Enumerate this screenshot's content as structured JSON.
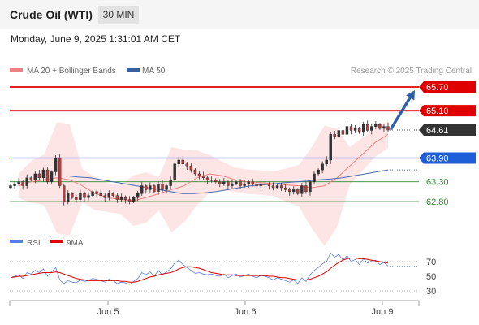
{
  "header": {
    "title": "Crude Oil (WTI)",
    "timeframe": "30 MIN",
    "datetime": "Monday, June 9, 2025 1:31:01 AM CET"
  },
  "chart_data": {
    "type": "candlestick",
    "instrument": "Crude Oil (WTI)",
    "interval": "30 MIN",
    "legend": [
      {
        "name": "MA 20 + Bollinger Bands",
        "color": "#f08080"
      },
      {
        "name": "MA 50",
        "color": "#3a5fa0"
      }
    ],
    "watermark": "Research © 2025 Trading Central",
    "x_tick_labels": [
      "Jun 5",
      "Jun 6",
      "Jun 9"
    ],
    "price_axis": {
      "range": [
        62.3,
        65.9
      ]
    },
    "levels": [
      {
        "value": 65.7,
        "label": "65.70",
        "color": "#e00000",
        "kind": "resistance"
      },
      {
        "value": 65.1,
        "label": "65.10",
        "color": "#e00000",
        "kind": "resistance"
      },
      {
        "value": 64.61,
        "label": "64.61",
        "color": "#333333",
        "kind": "last-price"
      },
      {
        "value": 63.9,
        "label": "63.90",
        "color": "#1e5fd8",
        "kind": "pivot"
      },
      {
        "value": 63.3,
        "label": "63.30",
        "color": "#2e8b2e",
        "kind": "support"
      },
      {
        "value": 62.8,
        "label": "62.80",
        "color": "#2e8b2e",
        "kind": "support"
      }
    ],
    "closes": [
      63.2,
      63.25,
      63.3,
      63.2,
      63.4,
      63.35,
      63.5,
      63.4,
      63.6,
      63.3,
      63.55,
      63.9,
      63.2,
      62.8,
      63.0,
      62.9,
      62.85,
      63.0,
      62.9,
      62.95,
      63.05,
      63.0,
      62.95,
      62.9,
      63.0,
      62.95,
      62.85,
      62.9,
      62.85,
      62.8,
      62.9,
      63.0,
      63.2,
      63.1,
      63.2,
      63.05,
      63.25,
      63.1,
      63.2,
      63.35,
      63.75,
      63.85,
      63.75,
      63.7,
      63.6,
      63.5,
      63.45,
      63.4,
      63.35,
      63.35,
      63.3,
      63.25,
      63.3,
      63.2,
      63.25,
      63.3,
      63.2,
      63.25,
      63.3,
      63.25,
      63.2,
      63.25,
      63.25,
      63.2,
      63.15,
      63.2,
      63.15,
      63.1,
      63.05,
      63.1,
      63.0,
      63.2,
      63.05,
      63.3,
      63.5,
      63.6,
      63.75,
      63.85,
      64.5,
      64.45,
      64.6,
      64.5,
      64.7,
      64.6,
      64.65,
      64.55,
      64.75,
      64.6,
      64.7,
      64.75,
      64.65,
      64.7,
      64.61
    ],
    "ma50": [
      63.45,
      63.42,
      63.4,
      63.35,
      63.3,
      63.25,
      63.2,
      63.15,
      63.1,
      63.05,
      63.0,
      63.0,
      63.02,
      63.05,
      63.1,
      63.15,
      63.2,
      63.22,
      63.25,
      63.28,
      63.3,
      63.32,
      63.35,
      63.37,
      63.4,
      63.45,
      63.5,
      63.55,
      63.6
    ],
    "ma20": [
      63.2,
      63.3,
      63.35,
      63.4,
      63.35,
      63.2,
      63.0,
      62.9,
      62.85,
      62.82,
      62.9,
      63.0,
      63.1,
      63.2,
      63.4,
      63.5,
      63.45,
      63.35,
      63.3,
      63.28,
      63.25,
      63.22,
      63.2,
      63.15,
      63.2,
      63.4,
      63.7,
      64.0,
      64.3,
      64.5
    ],
    "rsi_panel": {
      "legend": [
        {
          "name": "RSI",
          "color": "#5a7de0"
        },
        {
          "name": "9MA",
          "color": "#e00000"
        }
      ],
      "y_ticks": [
        70,
        50,
        30
      ],
      "ylim": [
        25,
        85
      ],
      "rsi": [
        48,
        50,
        52,
        47,
        55,
        53,
        58,
        55,
        60,
        50,
        56,
        62,
        45,
        40,
        44,
        42,
        41,
        45,
        43,
        44,
        47,
        46,
        44,
        42,
        46,
        44,
        40,
        42,
        41,
        39,
        43,
        47,
        55,
        52,
        56,
        50,
        58,
        52,
        56,
        60,
        68,
        72,
        66,
        62,
        58,
        54,
        55,
        53,
        52,
        53,
        51,
        50,
        53,
        48,
        51,
        53,
        49,
        51,
        53,
        50,
        48,
        51,
        50,
        48,
        45,
        48,
        46,
        44,
        42,
        45,
        40,
        48,
        43,
        52,
        58,
        62,
        67,
        70,
        82,
        76,
        80,
        72,
        78,
        70,
        73,
        66,
        74,
        68,
        71,
        72,
        66,
        69,
        64
      ],
      "ma9": [
        48,
        49,
        50,
        50,
        51,
        52,
        53,
        54,
        55,
        55,
        55,
        56,
        55,
        53,
        51,
        49,
        47,
        46,
        45,
        44,
        44,
        44,
        44,
        44,
        44,
        44,
        44,
        43,
        43,
        42,
        42,
        43,
        45,
        47,
        49,
        50,
        52,
        53,
        54,
        55,
        57,
        60,
        62,
        63,
        63,
        62,
        61,
        59,
        57,
        55,
        54,
        53,
        52,
        52,
        52,
        51,
        51,
        51,
        51,
        51,
        51,
        51,
        51,
        50,
        50,
        49,
        48,
        48,
        47,
        46,
        45,
        45,
        45,
        46,
        48,
        50,
        53,
        56,
        61,
        65,
        69,
        72,
        74,
        75,
        75,
        74,
        74,
        73,
        72,
        71,
        70,
        69,
        68
      ]
    }
  }
}
